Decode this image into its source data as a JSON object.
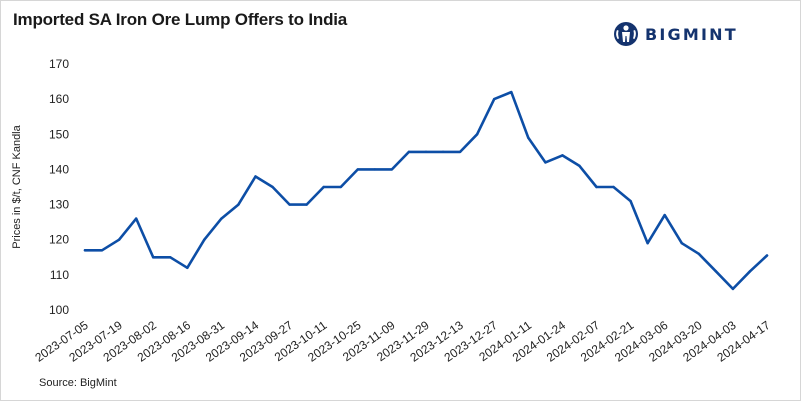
{
  "header": {
    "title": "Imported SA Iron Ore Lump Offers to India"
  },
  "logo": {
    "text": "BIGMINT",
    "icon": "bigmint-globe-icon",
    "color": "#14336e"
  },
  "footer": {
    "source": "Source: BigMint"
  },
  "chart_data": {
    "type": "line",
    "title": "Imported SA Iron Ore Lump Offers to India",
    "xlabel": "",
    "ylabel": "Prices in $/t, CNF Kandla",
    "ylim": [
      100,
      170
    ],
    "yticks": [
      100,
      110,
      120,
      130,
      140,
      150,
      160,
      170
    ],
    "grid": false,
    "legend": "none",
    "line_color": "#0d4ea6",
    "x": [
      "2023-07-05",
      "2023-07-12",
      "2023-07-19",
      "2023-07-26",
      "2023-08-02",
      "2023-08-09",
      "2023-08-16",
      "2023-08-23",
      "2023-08-31",
      "2023-09-07",
      "2023-09-14",
      "2023-09-21",
      "2023-09-27",
      "2023-10-04",
      "2023-10-11",
      "2023-10-18",
      "2023-10-25",
      "2023-11-01",
      "2023-11-09",
      "2023-11-15",
      "2023-11-29",
      "2023-12-06",
      "2023-12-13",
      "2023-12-20",
      "2023-12-27",
      "2024-01-04",
      "2024-01-11",
      "2024-01-17",
      "2024-01-24",
      "2024-01-31",
      "2024-02-07",
      "2024-02-14",
      "2024-02-21",
      "2024-02-28",
      "2024-03-06",
      "2024-03-13",
      "2024-03-20",
      "2024-03-27",
      "2024-04-03",
      "2024-04-10",
      "2024-04-17"
    ],
    "values": [
      117,
      117,
      120,
      126,
      115,
      115,
      112,
      120,
      126,
      130,
      138,
      135,
      130,
      130,
      135,
      135,
      140,
      140,
      140,
      145,
      145,
      145,
      145,
      150,
      160,
      162,
      149,
      142,
      144,
      141,
      135,
      135,
      131,
      119,
      127,
      119,
      116,
      111,
      106,
      111,
      115.5
    ],
    "xtick_labels": [
      "2023-07-05",
      "2023-07-19",
      "2023-08-02",
      "2023-08-16",
      "2023-08-31",
      "2023-09-14",
      "2023-09-27",
      "2023-10-11",
      "2023-10-25",
      "2023-11-09",
      "2023-11-29",
      "2023-12-13",
      "2023-12-27",
      "2024-01-11",
      "2024-01-24",
      "2024-02-07",
      "2024-02-21",
      "2024-03-06",
      "2024-03-20",
      "2024-04-03",
      "2024-04-17"
    ]
  }
}
